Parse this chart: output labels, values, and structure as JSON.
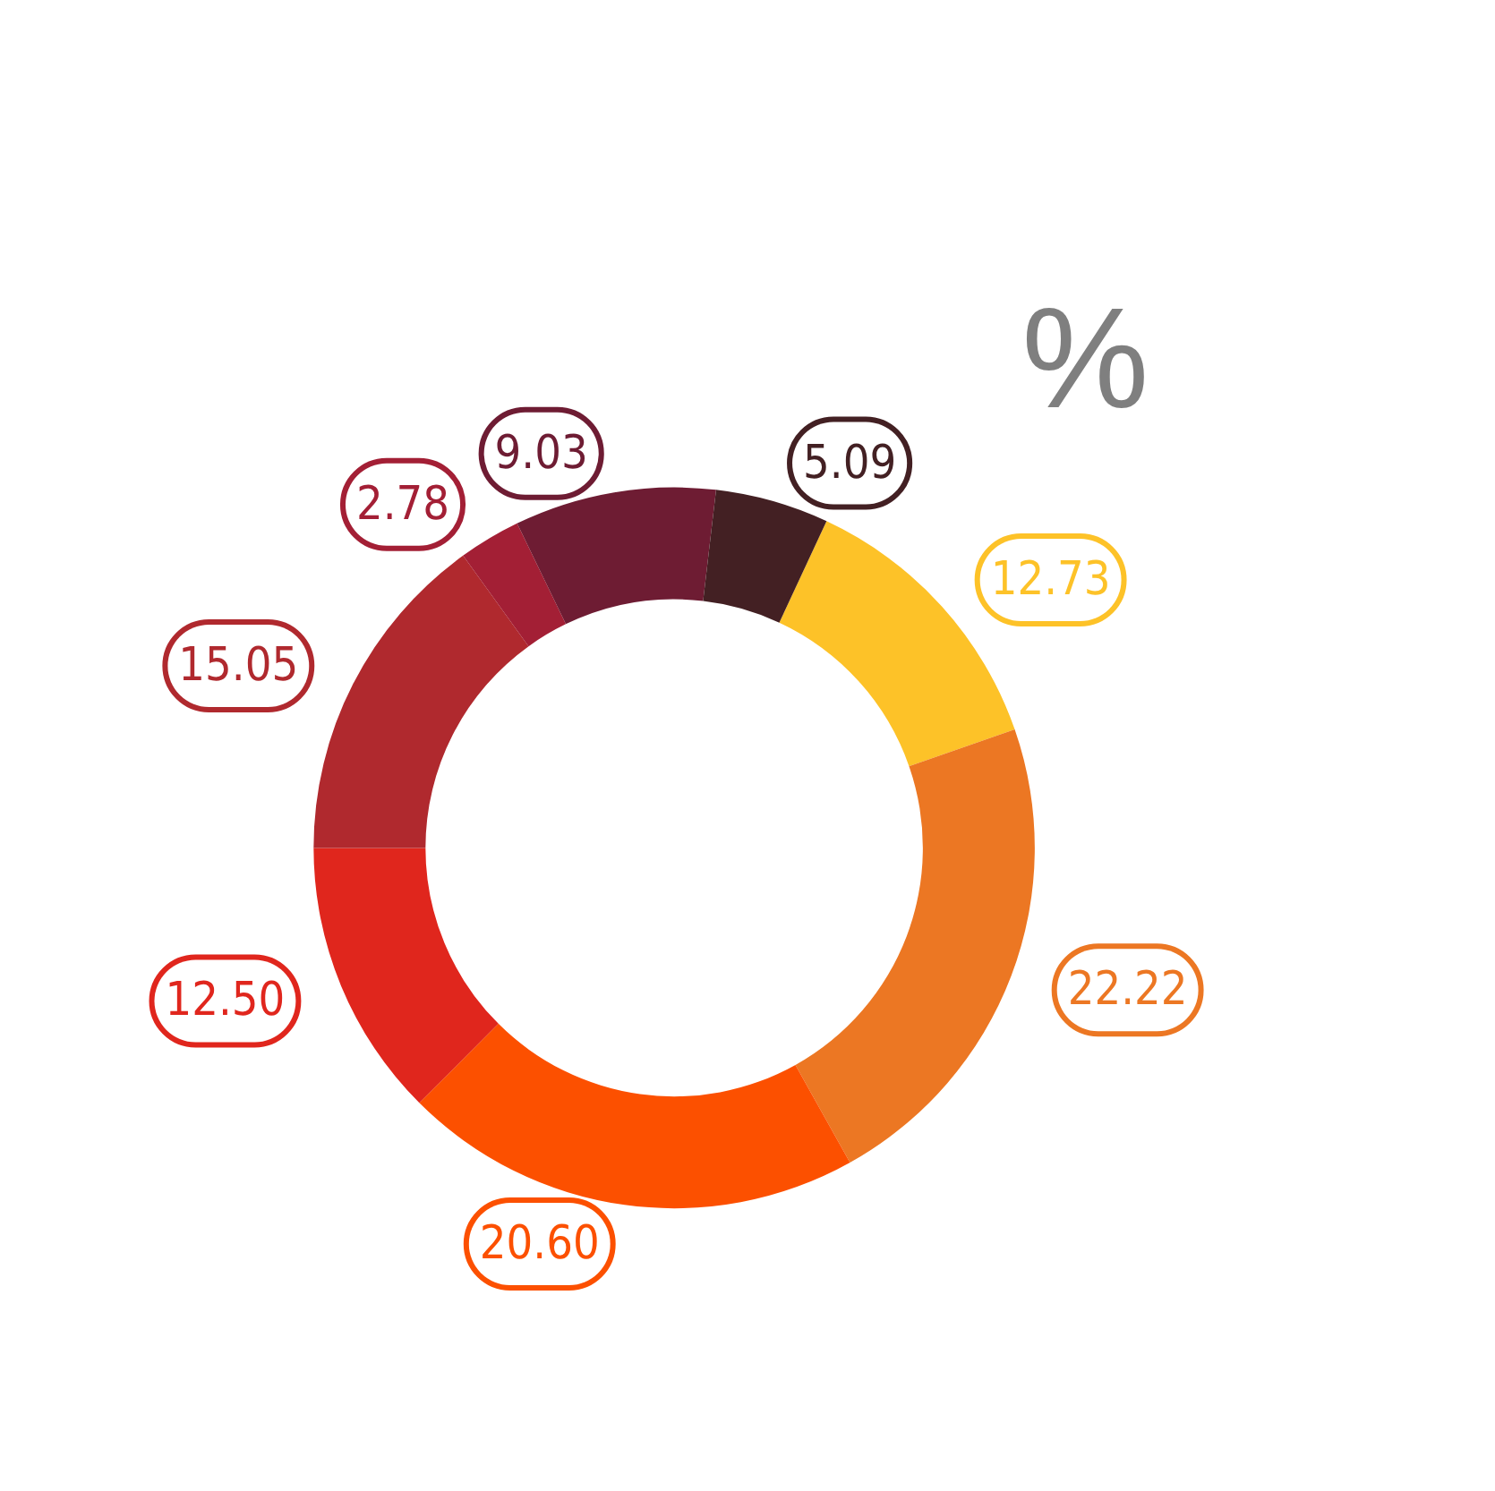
{
  "chart_data": {
    "type": "donut",
    "title": "%",
    "categories": [
      null,
      null,
      null,
      null,
      null,
      null,
      null,
      null
    ],
    "values": [
      12.73,
      22.22,
      20.6,
      12.5,
      15.05,
      2.78,
      9.03,
      5.09
    ],
    "value_labels": [
      "12.73",
      "22.22",
      "20.60",
      "12.50",
      "15.05",
      "2.78",
      "9.03",
      "5.09"
    ],
    "colors": [
      "#fdc228",
      "#ec7723",
      "#fc5000",
      "#e0261d",
      "#b0292e",
      "#a31f35",
      "#6e1c33",
      "#432023"
    ]
  }
}
